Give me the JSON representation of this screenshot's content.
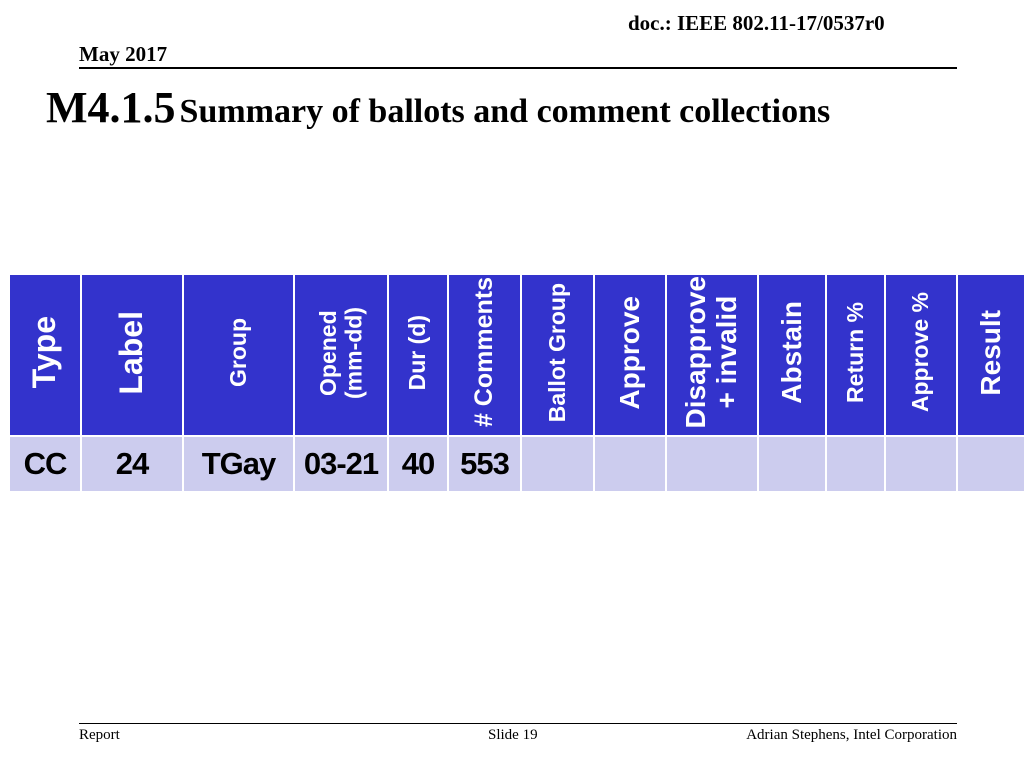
{
  "header": {
    "doc_id": "doc.: IEEE 802.11-17/0537r0",
    "date": "May 2017"
  },
  "title": {
    "number": "M4.1.5",
    "text": "Summary of ballots and comment collections"
  },
  "table": {
    "columns": [
      [
        "Type"
      ],
      [
        "Label"
      ],
      [
        "Group"
      ],
      [
        "Opened",
        "(mm-dd)"
      ],
      [
        "Dur (d)"
      ],
      [
        "# Comments"
      ],
      [
        "Ballot Group"
      ],
      [
        "Approve"
      ],
      [
        "Disapprove",
        "+ invalid"
      ],
      [
        "Abstain"
      ],
      [
        "Return %"
      ],
      [
        "Approve %"
      ],
      [
        "Result"
      ]
    ],
    "rows": [
      [
        "CC",
        "24",
        "TGay",
        "03-21",
        "40",
        "553",
        "",
        "",
        "",
        "",
        "",
        "",
        ""
      ]
    ]
  },
  "footer": {
    "left": "Report",
    "center": "Slide 19",
    "right": "Adrian Stephens, Intel Corporation"
  }
}
